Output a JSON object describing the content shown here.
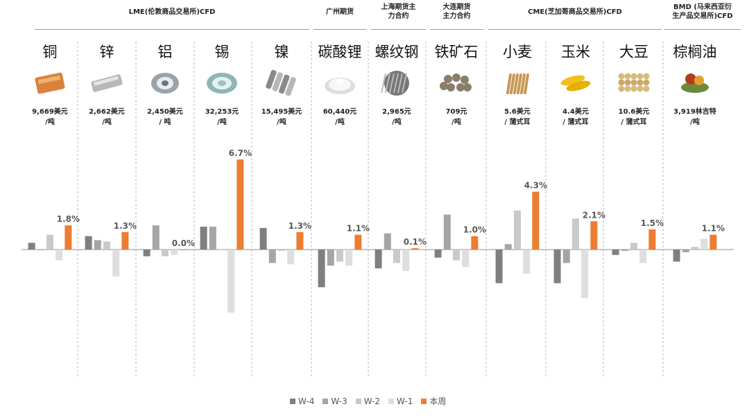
{
  "groups": [
    {
      "label": "LME(伦敦商品交易所)CFD"
    },
    {
      "label": "广州期货"
    },
    {
      "label": "上海期货主\n力合约"
    },
    {
      "label": "大连期货\n主力合约"
    },
    {
      "label": "CME(芝加哥商品交易所)CFD"
    },
    {
      "label": "BMD (马来西亚衍\n生产品交易所)CFD"
    }
  ],
  "columns": [
    {
      "name": "铜",
      "price": "9,669美元\n/吨",
      "icon": "copper-icon"
    },
    {
      "name": "锌",
      "price": "2,662美元\n/吨",
      "icon": "zinc-icon"
    },
    {
      "name": "铝",
      "price": "2,450美元\n/ 吨",
      "icon": "aluminum-icon"
    },
    {
      "name": "锡",
      "price": "32,253元\n/吨",
      "icon": "tin-icon"
    },
    {
      "name": "镍",
      "price": "15,495美元\n/吨",
      "icon": "nickel-icon"
    },
    {
      "name": "碳酸锂",
      "price": "60,440元\n/吨",
      "icon": "lithium-carbonate-icon"
    },
    {
      "name": "螺纹钢",
      "price": "2,965元\n/吨",
      "icon": "rebar-icon"
    },
    {
      "name": "铁矿石",
      "price": "709元\n/吨",
      "icon": "iron-ore-icon"
    },
    {
      "name": "小麦",
      "price": "5.6美元\n/ 蒲式耳",
      "icon": "wheat-icon"
    },
    {
      "name": "玉米",
      "price": "4.4美元\n/ 蒲式耳",
      "icon": "corn-icon"
    },
    {
      "name": "大豆",
      "price": "10.6美元\n/ 蒲式耳",
      "icon": "soybean-icon"
    },
    {
      "name": "棕榈油",
      "price": "3,919林吉特\n/吨",
      "icon": "palm-oil-icon"
    }
  ],
  "chart_data": {
    "type": "bar",
    "categories": [
      "铜",
      "锌",
      "铝",
      "锡",
      "镍",
      "碳酸锂",
      "螺纹钢",
      "铁矿石",
      "小麦",
      "玉米",
      "大豆",
      "棕榈油"
    ],
    "series": [
      {
        "name": "W-4",
        "color": "#7f7f7f",
        "values": [
          0.5,
          1.0,
          -0.5,
          1.7,
          1.6,
          -2.8,
          -1.4,
          -0.6,
          -2.5,
          -2.5,
          -0.4,
          -0.9
        ]
      },
      {
        "name": "W-3",
        "color": "#a5a5a5",
        "values": [
          0.0,
          0.7,
          1.8,
          1.7,
          -1.0,
          -1.2,
          1.2,
          2.6,
          0.4,
          -1.0,
          -0.1,
          -0.2
        ]
      },
      {
        "name": "W-2",
        "color": "#c9c9c9",
        "values": [
          1.1,
          0.6,
          -0.5,
          0.0,
          -0.1,
          -0.9,
          -1.0,
          -0.8,
          2.9,
          2.3,
          0.5,
          0.2
        ]
      },
      {
        "name": "W-1",
        "color": "#dedede",
        "values": [
          -0.8,
          -2.0,
          -0.4,
          -4.7,
          -1.1,
          -1.2,
          -1.6,
          -1.3,
          -1.8,
          -3.6,
          -1.0,
          0.8
        ]
      },
      {
        "name": "本周",
        "color": "#ed7d31",
        "values": [
          1.8,
          1.3,
          0.0,
          6.7,
          1.3,
          1.1,
          0.1,
          1.0,
          4.3,
          2.1,
          1.5,
          1.1
        ],
        "labels": [
          "1.8%",
          "1.3%",
          "0.0%",
          "6.7%",
          "1.3%",
          "1.1%",
          "0.1%",
          "1.0%",
          "4.3%",
          "2.1%",
          "1.5%",
          "1.1%"
        ]
      }
    ],
    "legend_position": "bottom"
  }
}
